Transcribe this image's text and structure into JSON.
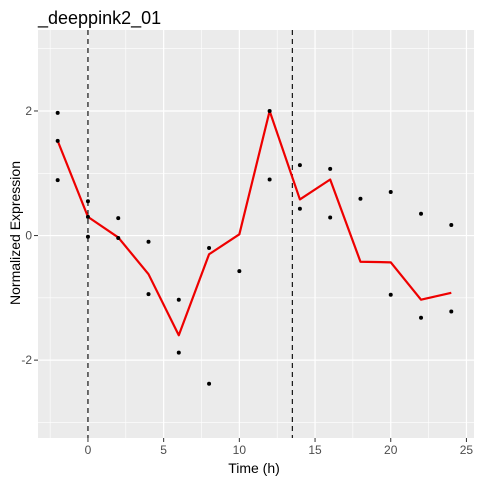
{
  "chart_data": {
    "type": "line",
    "title": "_deeppink2_01",
    "xlabel": "Time (h)",
    "ylabel": "Normalized Expression",
    "xlim": [
      -3.3,
      25.5
    ],
    "ylim": [
      -3.25,
      3.3
    ],
    "x_ticks": [
      0,
      5,
      10,
      15,
      20,
      25
    ],
    "y_ticks": [
      -2,
      0,
      2
    ],
    "x_tick_labels": [
      "0",
      "5",
      "10",
      "15",
      "20",
      "25"
    ],
    "y_tick_labels": [
      "-2",
      "0",
      "2"
    ],
    "grid": true,
    "legend": "none",
    "background_color": "#ebebeb",
    "line_color": "#ee0000",
    "point_color": "#000000",
    "vlines": [
      0,
      13.5
    ],
    "line": {
      "x": [
        -2,
        0,
        2,
        4,
        6,
        8,
        10,
        12,
        14,
        16,
        18,
        20,
        22,
        24
      ],
      "y": [
        1.52,
        0.3,
        -0.03,
        -0.62,
        -1.6,
        -0.3,
        0.02,
        2.0,
        0.58,
        0.9,
        -0.42,
        -0.43,
        -1.03,
        -0.92
      ]
    },
    "points": {
      "x": [
        -2,
        -2,
        -2,
        0,
        0,
        0,
        2,
        2,
        4,
        4,
        6,
        6,
        8,
        8,
        10,
        12,
        12,
        14,
        14,
        16,
        16,
        18,
        20,
        20,
        22,
        22,
        24,
        24
      ],
      "y": [
        1.97,
        1.52,
        0.89,
        0.55,
        0.3,
        -0.02,
        0.28,
        -0.04,
        -0.1,
        -0.94,
        -1.03,
        -1.88,
        -0.2,
        -2.38,
        -0.57,
        2.0,
        0.9,
        1.13,
        0.43,
        1.07,
        0.29,
        0.59,
        0.7,
        -0.95,
        0.35,
        -1.32,
        0.17,
        -1.22
      ]
    }
  }
}
